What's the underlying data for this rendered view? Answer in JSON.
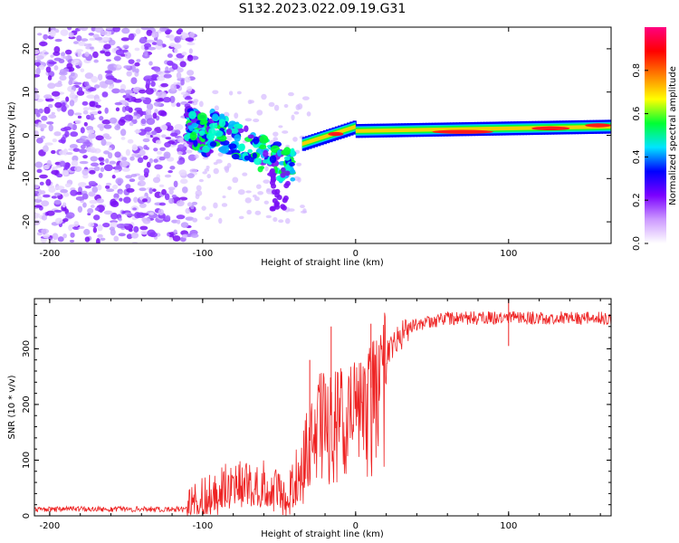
{
  "title": "S132.2023.022.09.19.G31",
  "chart_data": [
    {
      "type": "heatmap",
      "xlabel": "Height of straight line (km)",
      "ylabel": "Frequency (Hz)",
      "xlim": [
        -210,
        167
      ],
      "ylim": [
        -25,
        25
      ],
      "x_ticks": [
        -200,
        -100,
        0,
        100
      ],
      "y_ticks": [
        -20,
        -10,
        0,
        10,
        20
      ],
      "colorbar": {
        "label": "Normalized spectral amplitude",
        "range": [
          0,
          1
        ],
        "ticks": [
          0.0,
          0.2,
          0.4,
          0.6,
          0.8
        ],
        "colors": [
          "#ffffff",
          "#cc99ff",
          "#7b00ff",
          "#0000ff",
          "#00e5ff",
          "#00ff33",
          "#ffff00",
          "#ff8000",
          "#ff0000",
          "#ff0080"
        ]
      },
      "ridge_segments": [
        {
          "x0": -110,
          "x1": -95,
          "f0": 3,
          "f1": -1
        },
        {
          "x0": -95,
          "x1": -40,
          "f0": 2,
          "f1": -8
        },
        {
          "x0": -35,
          "x1": 0,
          "f0": -2,
          "f1": 2
        },
        {
          "x0": 0,
          "x1": 167,
          "f0": 1,
          "f1": 2
        }
      ]
    },
    {
      "type": "line",
      "xlabel": "Height of straight line (km)",
      "ylabel": "SNR (10 * v/v)",
      "xlim": [
        -210,
        167
      ],
      "ylim": [
        0,
        390
      ],
      "x_ticks": [
        -200,
        -100,
        0,
        100
      ],
      "y_ticks": [
        0,
        100,
        200,
        300
      ],
      "series_color": "#ee2222",
      "anchors": [
        {
          "x": -210,
          "y": 12
        },
        {
          "x": -110,
          "y": 12
        },
        {
          "x": -95,
          "y": 30
        },
        {
          "x": -80,
          "y": 60
        },
        {
          "x": -60,
          "y": 55
        },
        {
          "x": -45,
          "y": 25
        },
        {
          "x": -35,
          "y": 90
        },
        {
          "x": -25,
          "y": 180
        },
        {
          "x": -10,
          "y": 190
        },
        {
          "x": 10,
          "y": 230
        },
        {
          "x": 20,
          "y": 300
        },
        {
          "x": 35,
          "y": 340
        },
        {
          "x": 60,
          "y": 355
        },
        {
          "x": 100,
          "y": 355
        },
        {
          "x": 167,
          "y": 355
        }
      ],
      "spikes": [
        {
          "x": -30,
          "y": 280
        },
        {
          "x": -16,
          "y": 340
        },
        {
          "x": 10,
          "y": 345
        },
        {
          "x": 100,
          "y": 390
        },
        {
          "x": 100,
          "y": 305
        }
      ]
    }
  ]
}
